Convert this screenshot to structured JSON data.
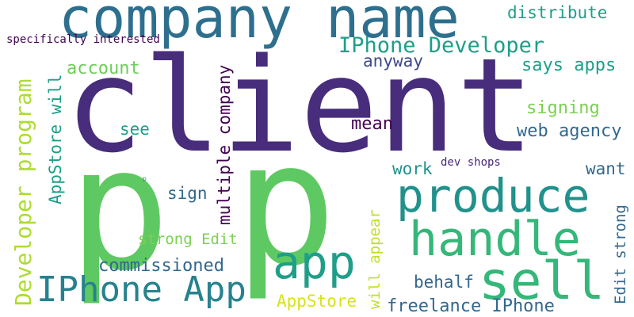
{
  "words": [
    {
      "id": "company-name",
      "text": "company name",
      "color": "#2e6f8e",
      "vertical": false
    },
    {
      "id": "client",
      "text": "client",
      "color": "#472d7b",
      "vertical": false
    },
    {
      "id": "p-left",
      "text": "p",
      "color": "#5ec962",
      "vertical": false
    },
    {
      "id": "p-right",
      "text": "p",
      "color": "#5ec962",
      "vertical": false
    },
    {
      "id": "produce",
      "text": "produce",
      "color": "#21918c",
      "vertical": false
    },
    {
      "id": "handle",
      "text": "handle",
      "color": "#35b779",
      "vertical": false
    },
    {
      "id": "sell",
      "text": "sell",
      "color": "#35b779",
      "vertical": false
    },
    {
      "id": "app",
      "text": "app",
      "color": "#1f9e89",
      "vertical": false
    },
    {
      "id": "iphone-app",
      "text": "IPhone App",
      "color": "#26828e",
      "vertical": false
    },
    {
      "id": "iphone-developer",
      "text": "IPhone Developer",
      "color": "#1f9e89",
      "vertical": false
    },
    {
      "id": "distribute",
      "text": "distribute",
      "color": "#1f9e89",
      "vertical": false
    },
    {
      "id": "specifically-interested",
      "text": "specifically interested",
      "color": "#440154",
      "vertical": false
    },
    {
      "id": "anyway",
      "text": "anyway",
      "color": "#3e4989",
      "vertical": false
    },
    {
      "id": "says-apps",
      "text": "says apps",
      "color": "#1f9e89",
      "vertical": false
    },
    {
      "id": "account",
      "text": "account",
      "color": "#6ece58",
      "vertical": false
    },
    {
      "id": "signing",
      "text": "signing",
      "color": "#7ad151",
      "vertical": false
    },
    {
      "id": "mean",
      "text": "mean",
      "color": "#440154",
      "vertical": false
    },
    {
      "id": "web-agency",
      "text": "web agency",
      "color": "#31688e",
      "vertical": false
    },
    {
      "id": "see",
      "text": "see",
      "color": "#1f9e89",
      "vertical": false
    },
    {
      "id": "work",
      "text": "work",
      "color": "#21918c",
      "vertical": false
    },
    {
      "id": "dev-shops",
      "text": "dev shops",
      "color": "#482878",
      "vertical": false
    },
    {
      "id": "want",
      "text": "want",
      "color": "#31688e",
      "vertical": false
    },
    {
      "id": "sign",
      "text": "sign",
      "color": "#31688e",
      "vertical": false
    },
    {
      "id": "p-small",
      "text": "p",
      "color": "#1f9e89",
      "vertical": false
    },
    {
      "id": "strong-edit",
      "text": "strong Edit",
      "color": "#7ad151",
      "vertical": false
    },
    {
      "id": "commissioned",
      "text": "commissioned",
      "color": "#31688e",
      "vertical": false
    },
    {
      "id": "behalf",
      "text": "behalf",
      "color": "#31688e",
      "vertical": false
    },
    {
      "id": "appstore",
      "text": "AppStore",
      "color": "#d8e219",
      "vertical": false
    },
    {
      "id": "freelance-iphone",
      "text": "freelance IPhone",
      "color": "#31688e",
      "vertical": false
    },
    {
      "id": "developer-program",
      "text": "Developer program",
      "color": "#addc30",
      "vertical": true
    },
    {
      "id": "appstore-will",
      "text": "AppStore will",
      "color": "#1f9e89",
      "vertical": true
    },
    {
      "id": "multiple-company",
      "text": "multiple company",
      "color": "#440154",
      "vertical": true
    },
    {
      "id": "will-appear",
      "text": "will appear",
      "color": "#c2df23",
      "vertical": true
    },
    {
      "id": "edit-strong",
      "text": "Edit strong",
      "color": "#31688e",
      "vertical": true
    }
  ]
}
